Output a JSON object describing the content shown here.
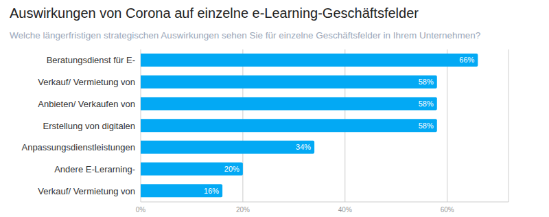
{
  "chart_data": {
    "type": "bar",
    "title": "Auswirkungen von Corona auf einzelne e-Learning-Geschäftsfelder",
    "subtitle": "Welche längerfristigen strategischen Auswirkungen sehen Sie für einzelne Geschäftsfelder in Ihrem Unternehmen?",
    "orientation": "horizontal",
    "categories": [
      "Beratungsdienst für E-",
      "Verkauf/ Vermietung von",
      "Anbieten/ Verkaufen von",
      "Erstellung von digitalen",
      "Anpassungsdienstleistungen",
      "Andere E-Lerarning-",
      "Verkauf/ Vermietung von"
    ],
    "values": [
      66,
      58,
      58,
      58,
      34,
      20,
      16
    ],
    "value_labels": [
      "66%",
      "58%",
      "58%",
      "58%",
      "34%",
      "20%",
      "16%"
    ],
    "data_labels": true,
    "color": "#03A9F4",
    "xlim": [
      0,
      72
    ],
    "xticks": [
      {
        "value": 0,
        "label": "0%"
      },
      {
        "value": 20,
        "label": "20%"
      },
      {
        "value": 40,
        "label": "40%"
      },
      {
        "value": 60,
        "label": "60%"
      }
    ],
    "grid": true
  }
}
